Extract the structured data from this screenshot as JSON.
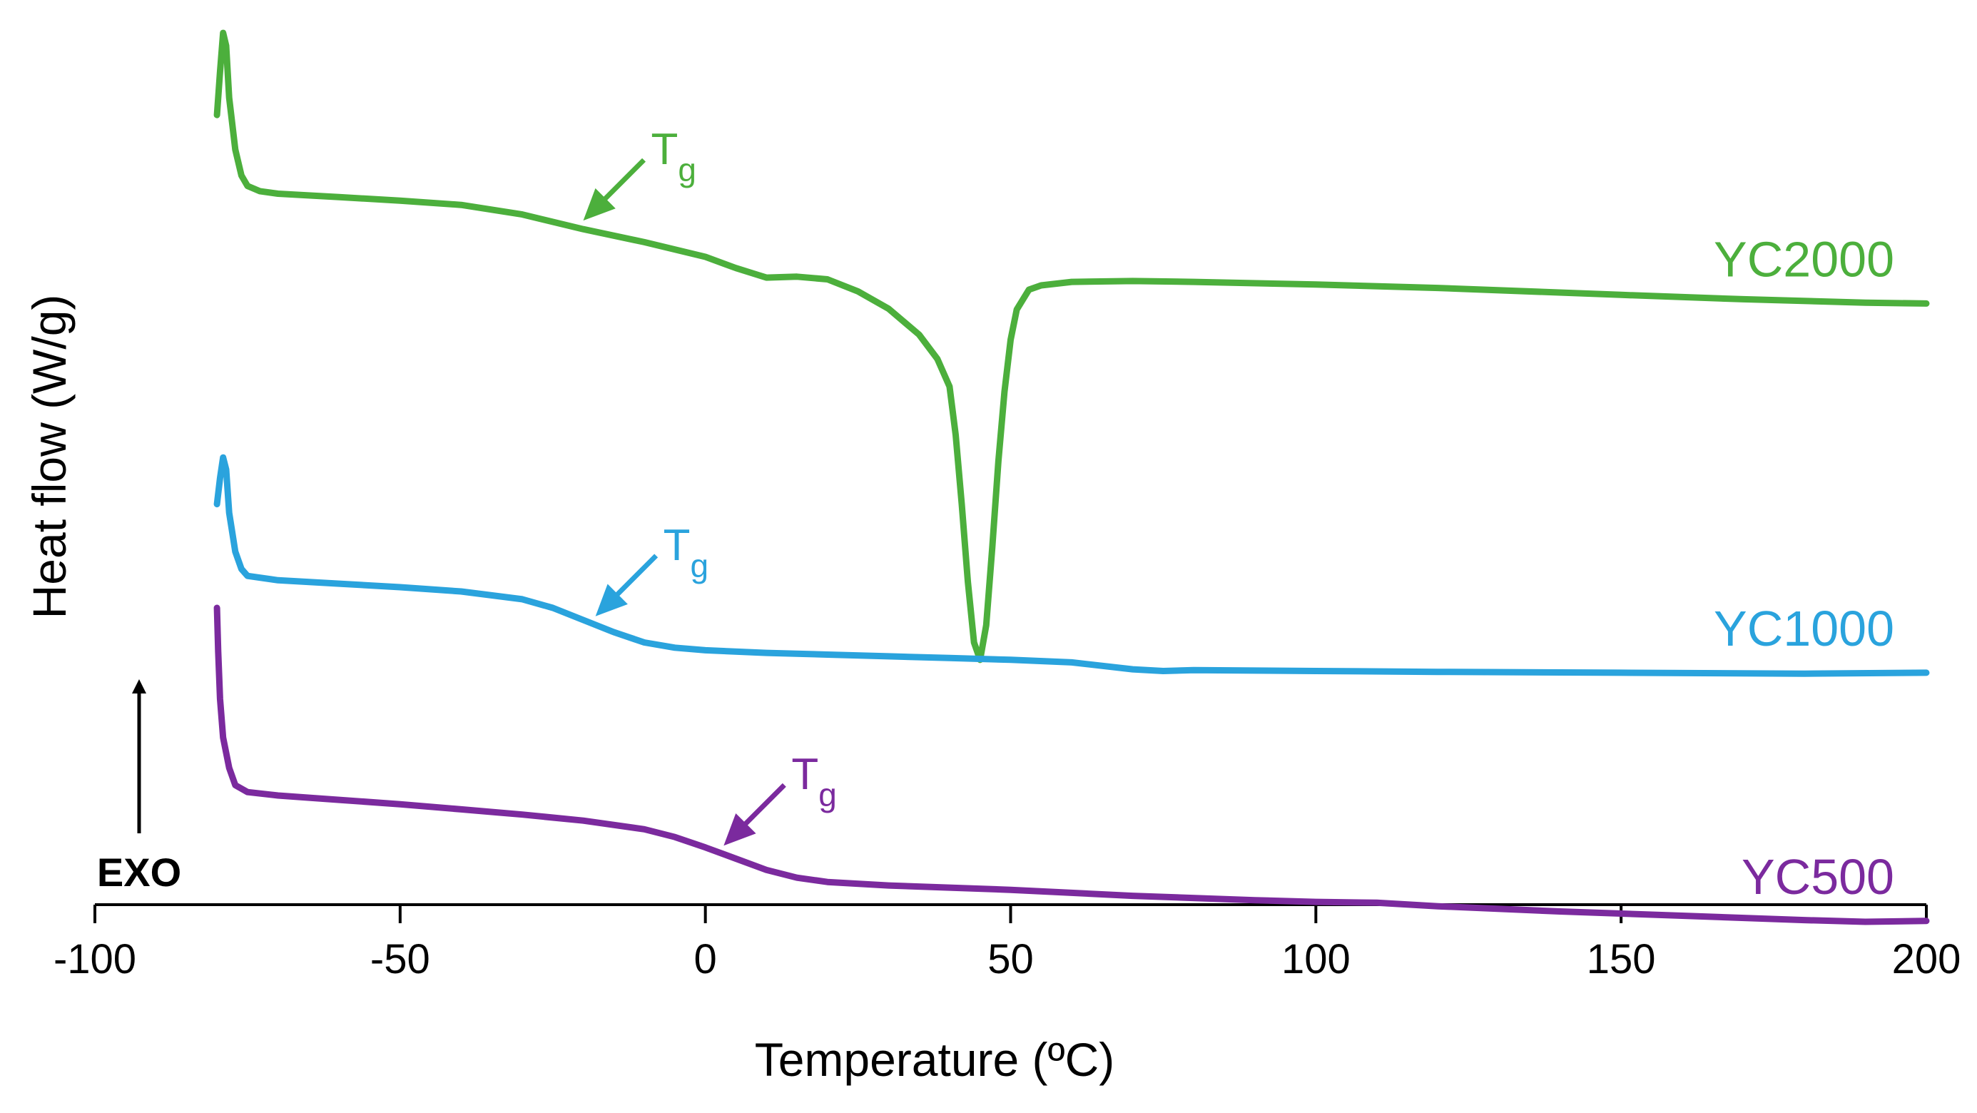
{
  "chart_data": {
    "type": "line",
    "title": "",
    "xlabel": "Temperature  (ºC)",
    "ylabel": "Heat flow (W/g)",
    "xlim": [
      -100,
      200
    ],
    "xticks": [
      -100,
      -50,
      0,
      50,
      100,
      150,
      200
    ],
    "y_ticks_shown": false,
    "ylim": [
      0,
      100
    ],
    "exo_label": "EXO",
    "tg_letter": "T",
    "tg_subscript": "g",
    "series": [
      {
        "name": "YC2000",
        "color": "#4caf3c",
        "tg_at": -20,
        "points": [
          [
            -80,
            90
          ],
          [
            -79.5,
            95
          ],
          [
            -79,
            99.5
          ],
          [
            -78.5,
            98
          ],
          [
            -78,
            92
          ],
          [
            -77,
            86
          ],
          [
            -76,
            83
          ],
          [
            -75,
            81.8
          ],
          [
            -73,
            81.2
          ],
          [
            -70,
            80.9
          ],
          [
            -60,
            80.5
          ],
          [
            -50,
            80.1
          ],
          [
            -40,
            79.6
          ],
          [
            -30,
            78.5
          ],
          [
            -20,
            76.8
          ],
          [
            -10,
            75.3
          ],
          [
            0,
            73.6
          ],
          [
            5,
            72.3
          ],
          [
            10,
            71.2
          ],
          [
            15,
            71.3
          ],
          [
            20,
            71
          ],
          [
            25,
            69.6
          ],
          [
            30,
            67.6
          ],
          [
            35,
            64.6
          ],
          [
            38,
            61.8
          ],
          [
            40,
            58.6
          ],
          [
            41,
            53
          ],
          [
            42,
            45
          ],
          [
            43,
            36
          ],
          [
            44,
            29
          ],
          [
            45,
            27
          ],
          [
            46,
            31
          ],
          [
            47,
            40
          ],
          [
            48,
            50
          ],
          [
            49,
            58
          ],
          [
            50,
            64
          ],
          [
            51,
            67.5
          ],
          [
            53,
            69.8
          ],
          [
            55,
            70.3
          ],
          [
            60,
            70.7
          ],
          [
            70,
            70.8
          ],
          [
            80,
            70.7
          ],
          [
            100,
            70.4
          ],
          [
            120,
            70
          ],
          [
            150,
            69.2
          ],
          [
            170,
            68.7
          ],
          [
            190,
            68.3
          ],
          [
            200,
            68.2
          ]
        ]
      },
      {
        "name": "YC1000",
        "color": "#2aa3dd",
        "tg_at": -18,
        "points": [
          [
            -80,
            45
          ],
          [
            -79.5,
            48
          ],
          [
            -79,
            50.4
          ],
          [
            -78.5,
            49
          ],
          [
            -78,
            44
          ],
          [
            -77,
            39.5
          ],
          [
            -76,
            37.5
          ],
          [
            -75,
            36.7
          ],
          [
            -70,
            36.2
          ],
          [
            -60,
            35.8
          ],
          [
            -50,
            35.4
          ],
          [
            -40,
            34.9
          ],
          [
            -30,
            34
          ],
          [
            -25,
            33
          ],
          [
            -20,
            31.6
          ],
          [
            -15,
            30.2
          ],
          [
            -10,
            29
          ],
          [
            -5,
            28.4
          ],
          [
            0,
            28.1
          ],
          [
            10,
            27.8
          ],
          [
            20,
            27.6
          ],
          [
            30,
            27.4
          ],
          [
            40,
            27.2
          ],
          [
            50,
            27
          ],
          [
            60,
            26.7
          ],
          [
            70,
            25.9
          ],
          [
            75,
            25.7
          ],
          [
            80,
            25.8
          ],
          [
            100,
            25.7
          ],
          [
            120,
            25.6
          ],
          [
            150,
            25.5
          ],
          [
            180,
            25.4
          ],
          [
            200,
            25.5
          ]
        ]
      },
      {
        "name": "YC500",
        "color": "#7b2a9e",
        "tg_at": 3,
        "points": [
          [
            -80,
            33
          ],
          [
            -79.8,
            28
          ],
          [
            -79.5,
            22.5
          ],
          [
            -79,
            18
          ],
          [
            -78,
            14.5
          ],
          [
            -77,
            12.5
          ],
          [
            -75,
            11.7
          ],
          [
            -70,
            11.3
          ],
          [
            -60,
            10.8
          ],
          [
            -50,
            10.3
          ],
          [
            -40,
            9.7
          ],
          [
            -30,
            9.1
          ],
          [
            -20,
            8.4
          ],
          [
            -10,
            7.4
          ],
          [
            -5,
            6.5
          ],
          [
            0,
            5.3
          ],
          [
            5,
            4
          ],
          [
            10,
            2.7
          ],
          [
            15,
            1.8
          ],
          [
            20,
            1.3
          ],
          [
            30,
            0.9
          ],
          [
            50,
            0.4
          ],
          [
            70,
            -0.3
          ],
          [
            90,
            -0.8
          ],
          [
            100,
            -1
          ],
          [
            110,
            -1.1
          ],
          [
            120,
            -1.5
          ],
          [
            140,
            -2.1
          ],
          [
            160,
            -2.6
          ],
          [
            180,
            -3.1
          ],
          [
            190,
            -3.3
          ],
          [
            200,
            -3.2
          ]
        ]
      }
    ]
  }
}
